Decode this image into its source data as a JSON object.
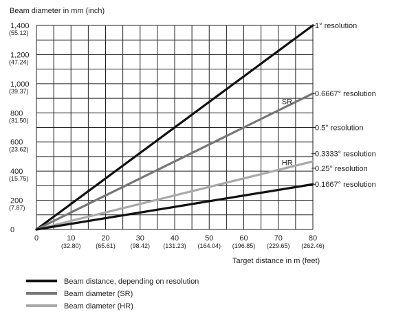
{
  "chart_data": {
    "type": "line",
    "title": "",
    "ylabel": "Beam diameter in mm (inch)",
    "xlabel": "Target distance in m (feet)",
    "xlim": [
      0,
      80
    ],
    "ylim": [
      0,
      1400
    ],
    "x_ticks": [
      {
        "value": 0,
        "label": "0",
        "sub": ""
      },
      {
        "value": 10,
        "label": "10",
        "sub": "(32.80)"
      },
      {
        "value": 20,
        "label": "20",
        "sub": "(65.61)"
      },
      {
        "value": 30,
        "label": "30",
        "sub": "(98.42)"
      },
      {
        "value": 40,
        "label": "40",
        "sub": "(131.23)"
      },
      {
        "value": 50,
        "label": "50",
        "sub": "(164.04)"
      },
      {
        "value": 60,
        "label": "60",
        "sub": "(196.85)"
      },
      {
        "value": 70,
        "label": "70",
        "sub": "(229.65)"
      },
      {
        "value": 80,
        "label": "80",
        "sub": "(262.46)"
      }
    ],
    "y_ticks": [
      {
        "value": 0,
        "label": "0",
        "sub": ""
      },
      {
        "value": 200,
        "label": "200",
        "sub": "(7.87)"
      },
      {
        "value": 400,
        "label": "400",
        "sub": "(15.75)"
      },
      {
        "value": 600,
        "label": "600",
        "sub": "(23.62)"
      },
      {
        "value": 800,
        "label": "800",
        "sub": "(31.50)"
      },
      {
        "value": 1000,
        "label": "1,000",
        "sub": "(39.37)"
      },
      {
        "value": 1200,
        "label": "1,200",
        "sub": "(47.24)"
      },
      {
        "value": 1400,
        "label": "1,400",
        "sub": "(55.12)"
      }
    ],
    "x_minor_step": 5,
    "y_minor_step": 100,
    "grid": true,
    "series": [
      {
        "name": "1° resolution",
        "style": "black",
        "x": [
          0,
          80
        ],
        "y": [
          0,
          1400
        ]
      },
      {
        "name": "0.6667° resolution",
        "style": "dark-grey",
        "x": [
          0,
          80
        ],
        "y": [
          0,
          933
        ]
      },
      {
        "name": "0.3333° resolution",
        "style": "light-grey",
        "x": [
          0,
          80
        ],
        "y": [
          0,
          467
        ]
      },
      {
        "name": "0.1667° resolution",
        "style": "black",
        "x": [
          0,
          80
        ],
        "y": [
          0,
          310
        ]
      }
    ],
    "resolution_labels": [
      {
        "text": "1° resolution",
        "y": 1400
      },
      {
        "text": "0.6667° resolution",
        "y": 933
      },
      {
        "text": "0.5° resolution",
        "y": 700
      },
      {
        "text": "0.3333° resolution",
        "y": 520
      },
      {
        "text": "0.25° resolution",
        "y": 420
      },
      {
        "text": "0.1667° resolution",
        "y": 310
      }
    ],
    "inline_labels": [
      {
        "text": "SR",
        "x": 72,
        "y": 880
      },
      {
        "text": "HR",
        "x": 72,
        "y": 460
      }
    ],
    "legend": {
      "placement": "bottom-left",
      "items": [
        {
          "label": "Beam distance, depending on resolution",
          "style": "black"
        },
        {
          "label": "Beam diameter (SR)",
          "style": "dark-grey"
        },
        {
          "label": "Beam diameter (HR)",
          "style": "light-grey"
        }
      ]
    },
    "colors": {
      "black": "#111111",
      "dark-grey": "#777777",
      "light-grey": "#a9a9a9",
      "grid": "#222222"
    }
  }
}
